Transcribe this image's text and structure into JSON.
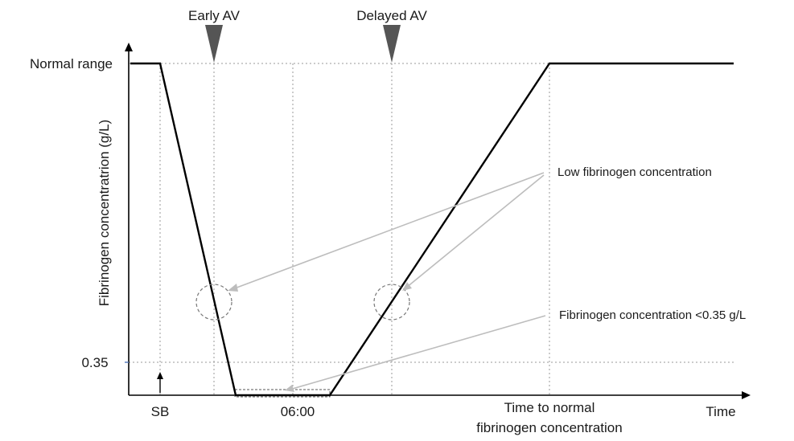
{
  "diagram": {
    "y_axis_label": "Fibrinogen concentratrion (g/L)",
    "y_tick_normal": "Normal range",
    "y_tick_low": "0.35",
    "x_axis_label": "Time",
    "x_marker_sb": "SB",
    "x_marker_0600": "06:00",
    "x_marker_normal_line1": "Time to normal",
    "x_marker_normal_line2": "fibrinogen concentration",
    "early_av_label": "Early AV",
    "delayed_av_label": "Delayed AV",
    "annotation_low": "Low fibrinogen concentration",
    "annotation_very_low": "Fibrinogen concentration <0.35 g/L"
  },
  "colors": {
    "curve": "#000000",
    "guide": "#9a9a9a",
    "pointer": "#bdbdbd",
    "marker": "#555555"
  }
}
